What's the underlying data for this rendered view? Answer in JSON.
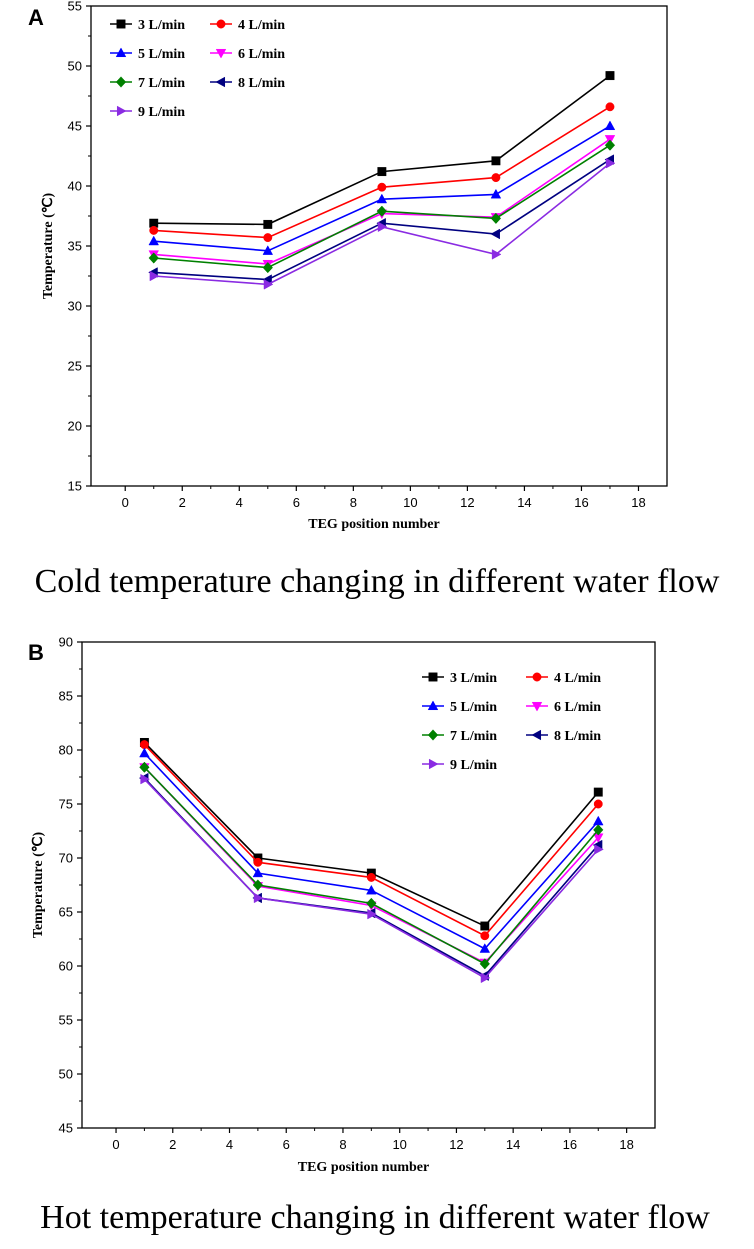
{
  "chart_data": [
    {
      "type": "line",
      "panel": "A",
      "caption": "Cold temperature changing in different water flow",
      "xlabel": "TEG position number",
      "ylabel": "Temperature (℃)",
      "xlim": [
        -1.2,
        19
      ],
      "ylim": [
        15,
        55
      ],
      "xticks": [
        0,
        2,
        4,
        6,
        8,
        10,
        12,
        14,
        16,
        18
      ],
      "yticks": [
        15,
        20,
        25,
        30,
        35,
        40,
        45,
        50,
        55
      ],
      "x": [
        1,
        5,
        9,
        13,
        17
      ],
      "legend_position": "top-left",
      "series": [
        {
          "name": "3 L/min",
          "color": "#000000",
          "marker": "square",
          "values": [
            36.9,
            36.8,
            41.2,
            42.1,
            49.2
          ]
        },
        {
          "name": "4 L/min",
          "color": "#ff0000",
          "marker": "circle",
          "values": [
            36.3,
            35.7,
            39.9,
            40.7,
            46.6
          ]
        },
        {
          "name": "5 L/min",
          "color": "#0000ff",
          "marker": "triangle-up",
          "values": [
            35.4,
            34.6,
            38.9,
            39.3,
            45.0
          ]
        },
        {
          "name": "6 L/min",
          "color": "#ff00ff",
          "marker": "triangle-down",
          "values": [
            34.3,
            33.5,
            37.7,
            37.4,
            43.9
          ]
        },
        {
          "name": "7 L/min",
          "color": "#008000",
          "marker": "diamond",
          "values": [
            34.0,
            33.2,
            37.9,
            37.3,
            43.4
          ]
        },
        {
          "name": "8 L/min",
          "color": "#000080",
          "marker": "triangle-left",
          "values": [
            32.8,
            32.2,
            36.9,
            36.0,
            42.2
          ]
        },
        {
          "name": "9 L/min",
          "color": "#8a2be2",
          "marker": "triangle-right",
          "values": [
            32.5,
            31.8,
            36.6,
            34.3,
            41.9
          ]
        }
      ]
    },
    {
      "type": "line",
      "panel": "B",
      "caption": "Hot temperature changing in different water flow",
      "xlabel": "TEG position number",
      "ylabel": "Temperature (℃)",
      "xlim": [
        -1.2,
        19
      ],
      "ylim": [
        45,
        90
      ],
      "xticks": [
        0,
        2,
        4,
        6,
        8,
        10,
        12,
        14,
        16,
        18
      ],
      "yticks": [
        45,
        50,
        55,
        60,
        65,
        70,
        75,
        80,
        85,
        90
      ],
      "x": [
        1,
        5,
        9,
        13,
        17
      ],
      "legend_position": "top-right",
      "series": [
        {
          "name": "3 L/min",
          "color": "#000000",
          "marker": "square",
          "values": [
            80.7,
            70.0,
            68.6,
            63.7,
            76.1
          ]
        },
        {
          "name": "4 L/min",
          "color": "#ff0000",
          "marker": "circle",
          "values": [
            80.5,
            69.6,
            68.2,
            62.8,
            75.0
          ]
        },
        {
          "name": "5 L/min",
          "color": "#0000ff",
          "marker": "triangle-up",
          "values": [
            79.7,
            68.6,
            67.0,
            61.6,
            73.4
          ]
        },
        {
          "name": "6 L/min",
          "color": "#ff00ff",
          "marker": "triangle-down",
          "values": [
            78.4,
            67.4,
            65.6,
            60.3,
            71.9
          ]
        },
        {
          "name": "7 L/min",
          "color": "#008000",
          "marker": "diamond",
          "values": [
            78.4,
            67.5,
            65.8,
            60.2,
            72.6
          ]
        },
        {
          "name": "8 L/min",
          "color": "#000080",
          "marker": "triangle-left",
          "values": [
            77.4,
            66.3,
            64.9,
            59.1,
            71.2
          ]
        },
        {
          "name": "9 L/min",
          "color": "#8a2be2",
          "marker": "triangle-right",
          "values": [
            77.3,
            66.3,
            64.8,
            58.9,
            70.8
          ]
        }
      ]
    }
  ]
}
